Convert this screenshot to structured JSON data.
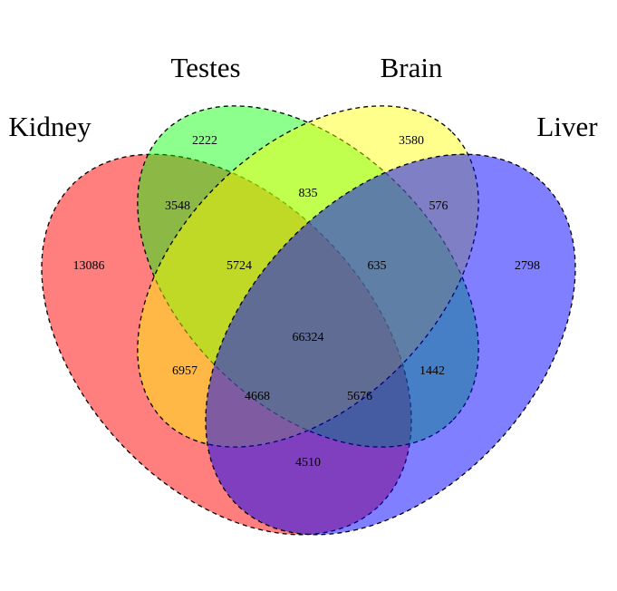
{
  "sets": [
    {
      "key": "kidney",
      "label": "Kidney",
      "color": "#ff0000"
    },
    {
      "key": "testes",
      "label": "Testes",
      "color": "#00ff00"
    },
    {
      "key": "brain",
      "label": "Brain",
      "color": "#ffff00"
    },
    {
      "key": "liver",
      "label": "Liver",
      "color": "#0000ff"
    }
  ],
  "regions": {
    "kidney_only": "13086",
    "testes_only": "2222",
    "brain_only": "3580",
    "liver_only": "2798",
    "kidney_testes": "3548",
    "testes_brain": "835",
    "brain_liver": "576",
    "kidney_testes_brain": "5724",
    "testes_brain_liver": "635",
    "all_four": "66324",
    "kidney_brain": "6957",
    "testes_liver": "1442",
    "kidney_brain_liver": "4668",
    "kidney_testes_liver": "5676",
    "kidney_liver": "4510"
  }
}
